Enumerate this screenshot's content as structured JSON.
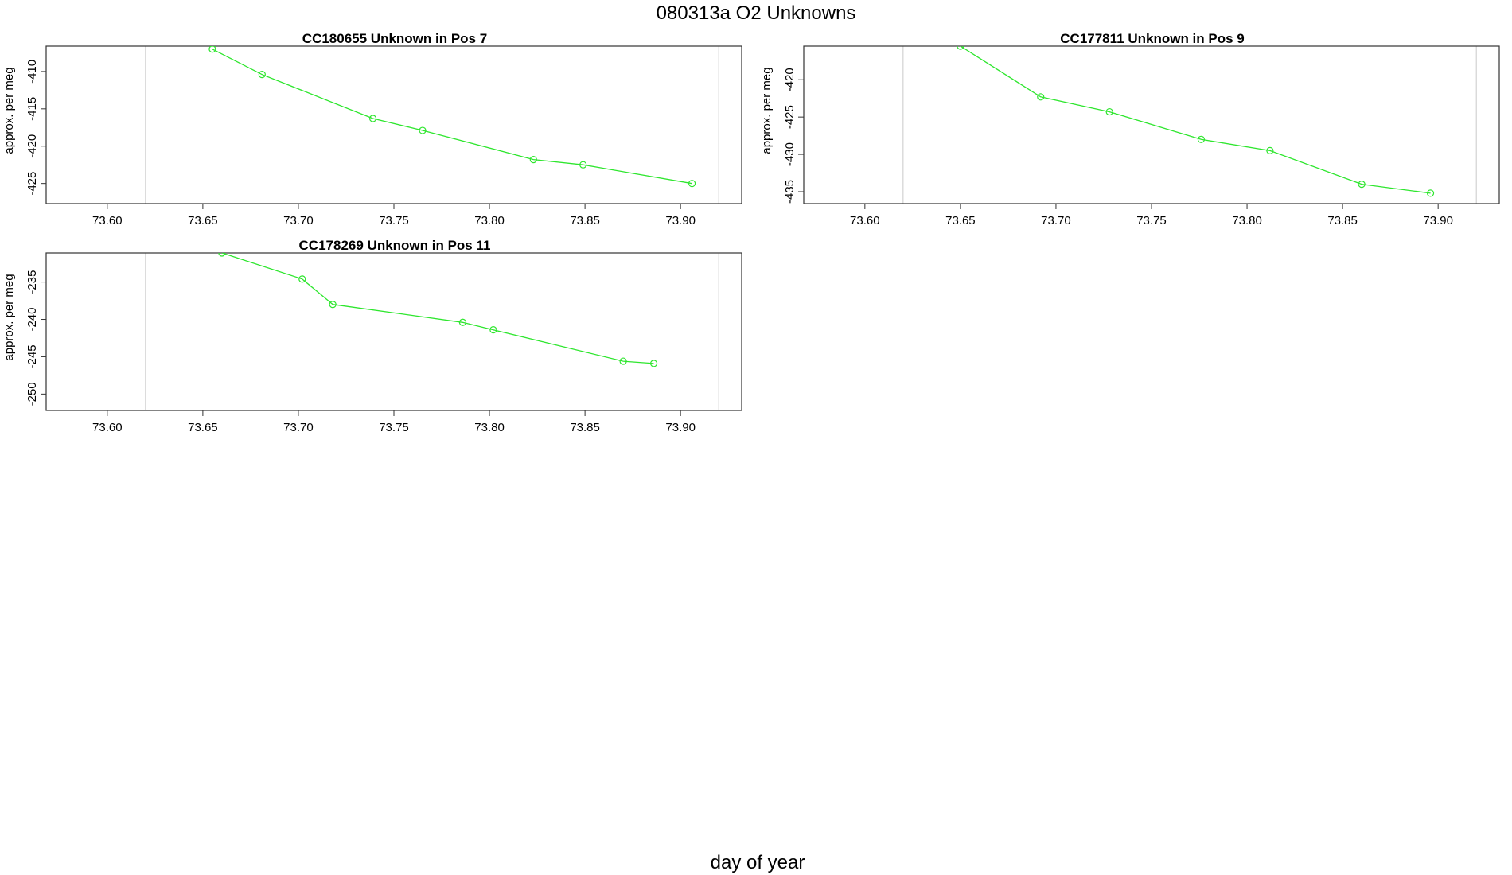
{
  "figure": {
    "title": "080313a  O2 Unknowns",
    "xlabel": "day of year"
  },
  "chart_data": [
    {
      "type": "line",
      "title": "CC180655    Unknown in Pos 7",
      "ylabel": "approx. per meg",
      "xlim": [
        73.568,
        73.932
      ],
      "ylim": [
        -427.7,
        -406.6
      ],
      "xticks": [
        "73.60",
        "73.65",
        "73.70",
        "73.75",
        "73.80",
        "73.85",
        "73.90"
      ],
      "yticks": [
        "-410",
        "-415",
        "-420",
        "-425"
      ],
      "vlines": [
        73.62,
        73.92
      ],
      "color": "#2ee62e",
      "x": [
        73.655,
        73.681,
        73.739,
        73.765,
        73.823,
        73.849,
        73.906
      ],
      "y": [
        -407.0,
        -410.4,
        -416.3,
        -417.9,
        -421.8,
        -422.5,
        -425.0
      ]
    },
    {
      "type": "line",
      "title": "CC177811    Unknown in Pos 9",
      "ylabel": "approx. per meg",
      "xlim": [
        73.568,
        73.932
      ],
      "ylim": [
        -436.6,
        -415.5
      ],
      "xticks": [
        "73.60",
        "73.65",
        "73.70",
        "73.75",
        "73.80",
        "73.85",
        "73.90"
      ],
      "yticks": [
        "-420",
        "-425",
        "-430",
        "-435"
      ],
      "vlines": [
        73.62,
        73.92
      ],
      "color": "#2ee62e",
      "x": [
        73.65,
        73.692,
        73.728,
        73.776,
        73.812,
        73.86,
        73.896
      ],
      "y": [
        -415.5,
        -422.3,
        -424.3,
        -428.0,
        -429.5,
        -434.0,
        -435.2
      ]
    },
    {
      "type": "line",
      "title": "CC178269    Unknown in Pos 11",
      "ylabel": "approx. per meg",
      "xlim": [
        73.568,
        73.932
      ],
      "ylim": [
        -252.2,
        -231.1
      ],
      "xticks": [
        "73.60",
        "73.65",
        "73.70",
        "73.75",
        "73.80",
        "73.85",
        "73.90"
      ],
      "yticks": [
        "-235",
        "-240",
        "-245",
        "-250"
      ],
      "vlines": [
        73.62,
        73.92
      ],
      "color": "#2ee62e",
      "x": [
        73.66,
        73.702,
        73.718,
        73.786,
        73.802,
        73.87,
        73.886
      ],
      "y": [
        -231.1,
        -234.6,
        -238.0,
        -240.4,
        -241.4,
        -245.6,
        -245.9
      ]
    }
  ]
}
